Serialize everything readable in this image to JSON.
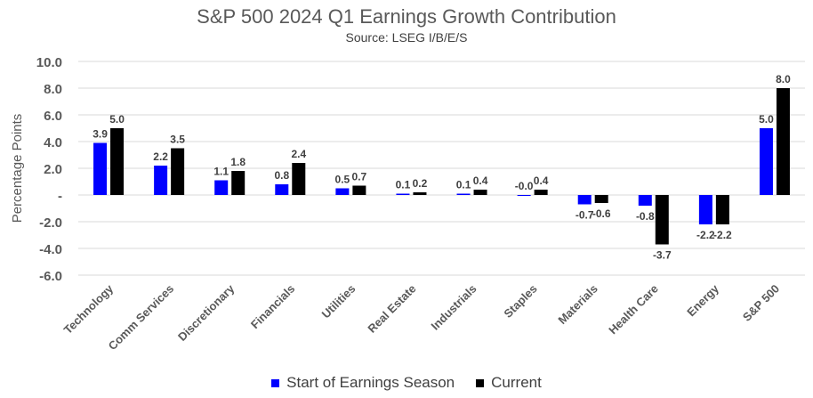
{
  "chart_data": {
    "type": "bar",
    "title": "S&P 500 2024 Q1 Earnings Growth Contribution",
    "subtitle": "Source: LSEG I/B/E/S",
    "ylabel": "Percentage Points",
    "xlabel": "",
    "ylim": [
      -6,
      10
    ],
    "yticks": [
      10,
      8,
      6,
      4,
      2,
      0,
      -2,
      -4,
      -6
    ],
    "ytick_labels": [
      "10.0",
      "8.0",
      "6.0",
      "4.0",
      "2.0",
      "-",
      "-2.0",
      "-4.0",
      "-6.0"
    ],
    "grid": true,
    "legend_position": "bottom",
    "categories": [
      "Technology",
      "Comm Services",
      "Discretionary",
      "Financials",
      "Utilities",
      "Real Estate",
      "Industrials",
      "Staples",
      "Materials",
      "Health Care",
      "Energy",
      "S&P 500"
    ],
    "series": [
      {
        "name": "Start of Earnings Season",
        "color": "#0000FF",
        "values": [
          3.9,
          2.2,
          1.1,
          0.8,
          0.5,
          0.1,
          0.1,
          -0.0,
          -0.7,
          -0.8,
          -2.2,
          5.0
        ],
        "labels": [
          "3.9",
          "2.2",
          "1.1",
          "0.8",
          "0.5",
          "0.1",
          "0.1",
          "-0.0",
          "-0.7",
          "-0.8",
          "-2.2",
          "5.0"
        ]
      },
      {
        "name": "Current",
        "color": "#000000",
        "values": [
          5.0,
          3.5,
          1.8,
          2.4,
          0.7,
          0.2,
          0.4,
          0.4,
          -0.6,
          -3.7,
          -2.2,
          8.0
        ],
        "labels": [
          "5.0",
          "3.5",
          "1.8",
          "2.4",
          "0.7",
          "0.2",
          "0.4",
          "0.4",
          "-0.6",
          "-3.7",
          "-2.2",
          "8.0"
        ]
      }
    ]
  }
}
